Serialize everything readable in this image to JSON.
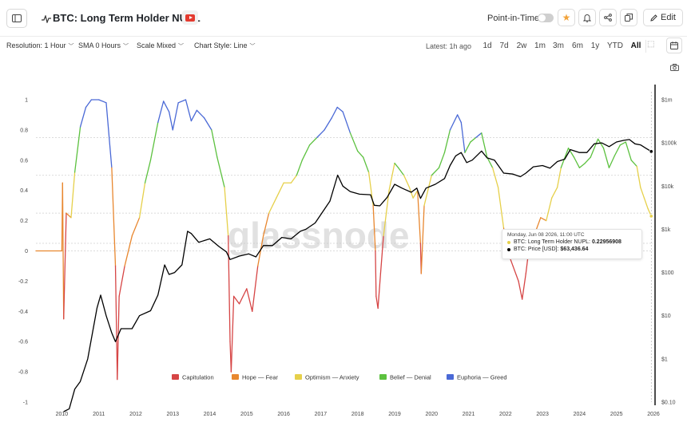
{
  "header": {
    "title": "BTC: Long Term Holder NUPL",
    "point_in_time_label": "Point-in-Time",
    "point_in_time_enabled": false,
    "edit_label": "Edit",
    "icons": [
      "sidebar-toggle-icon",
      "metric-activity-icon",
      "youtube-icon",
      "star-icon",
      "bell-icon",
      "share-icon",
      "copy-icon",
      "pencil-icon"
    ]
  },
  "controls": {
    "resolution": "Resolution: 1 Hour",
    "sma": "SMA 0 Hours",
    "scale": "Scale Mixed",
    "chart_style": "Chart Style: Line",
    "latest": "Latest: 1h ago",
    "ranges": [
      "1d",
      "7d",
      "2w",
      "1m",
      "3m",
      "6m",
      "1y",
      "YTD",
      "All"
    ],
    "active_range": "All"
  },
  "tooltip": {
    "date": "Monday, Jun 08 2026, 11:00 UTC",
    "nupl_label": "BTC: Long Term Holder NUPL:",
    "nupl_value": "0.22956908",
    "price_label": "BTC: Price [USD]:",
    "price_value": "$63,436.64"
  },
  "chart_data": {
    "type": "line",
    "watermark": "glassnode",
    "x_ticks": [
      "2010",
      "2011",
      "2012",
      "2013",
      "2014",
      "2015",
      "2016",
      "2017",
      "2018",
      "2019",
      "2020",
      "2021",
      "2022",
      "2023",
      "2024",
      "2025",
      "2026"
    ],
    "xlim": [
      2009.8,
      2026.5
    ],
    "left_axis": {
      "ticks": [
        "1",
        "0.8",
        "0.6",
        "0.4",
        "0.2",
        "0",
        "-0.2",
        "-0.4",
        "-0.6",
        "-0.8",
        "-1"
      ],
      "ylim": [
        -1,
        1
      ]
    },
    "right_axis": {
      "scale": "log",
      "ticks": [
        "$1m",
        "$100k",
        "$10k",
        "$1k",
        "$100",
        "$10",
        "$1",
        "$0.10"
      ],
      "ylim": [
        0.1,
        1000000
      ]
    },
    "zone_lines": [
      0.75,
      0.5,
      0.25,
      0.05,
      0
    ],
    "legend_position": "bottom",
    "legend": [
      {
        "name": "Capitulation",
        "color": "#d64545"
      },
      {
        "name": "Hope — Fear",
        "color": "#e8872f"
      },
      {
        "name": "Optimism — Anxiety",
        "color": "#e6d04a"
      },
      {
        "name": "Belief — Denial",
        "color": "#5cc13f"
      },
      {
        "name": "Euphoria — Greed",
        "color": "#4a69d6"
      }
    ],
    "series": [
      {
        "name": "BTC: Long Term Holder NUPL",
        "axis": "left",
        "points": [
          [
            2009.8,
            0.0
          ],
          [
            2010.5,
            0.0
          ],
          [
            2010.52,
            0.45
          ],
          [
            2010.55,
            -0.45
          ],
          [
            2010.62,
            0.25
          ],
          [
            2010.75,
            0.22
          ],
          [
            2010.85,
            0.52
          ],
          [
            2011.0,
            0.82
          ],
          [
            2011.15,
            0.95
          ],
          [
            2011.3,
            1.0
          ],
          [
            2011.5,
            1.0
          ],
          [
            2011.7,
            0.98
          ],
          [
            2011.85,
            0.55
          ],
          [
            2011.95,
            -0.1
          ],
          [
            2012.0,
            -0.85
          ],
          [
            2012.05,
            -0.3
          ],
          [
            2012.2,
            -0.1
          ],
          [
            2012.4,
            0.1
          ],
          [
            2012.6,
            0.22
          ],
          [
            2012.75,
            0.45
          ],
          [
            2012.9,
            0.6
          ],
          [
            2013.1,
            0.85
          ],
          [
            2013.25,
            0.99
          ],
          [
            2013.4,
            0.92
          ],
          [
            2013.5,
            0.8
          ],
          [
            2013.65,
            0.98
          ],
          [
            2013.85,
            1.0
          ],
          [
            2014.0,
            0.86
          ],
          [
            2014.15,
            0.93
          ],
          [
            2014.35,
            0.88
          ],
          [
            2014.55,
            0.8
          ],
          [
            2014.7,
            0.62
          ],
          [
            2014.9,
            0.42
          ],
          [
            2015.0,
            0.1
          ],
          [
            2015.05,
            -0.6
          ],
          [
            2015.08,
            -0.8
          ],
          [
            2015.15,
            -0.3
          ],
          [
            2015.3,
            -0.35
          ],
          [
            2015.5,
            -0.25
          ],
          [
            2015.65,
            -0.4
          ],
          [
            2015.8,
            -0.1
          ],
          [
            2015.95,
            0.1
          ],
          [
            2016.1,
            0.25
          ],
          [
            2016.3,
            0.35
          ],
          [
            2016.5,
            0.45
          ],
          [
            2016.7,
            0.45
          ],
          [
            2016.85,
            0.5
          ],
          [
            2017.0,
            0.6
          ],
          [
            2017.2,
            0.7
          ],
          [
            2017.4,
            0.75
          ],
          [
            2017.6,
            0.8
          ],
          [
            2017.8,
            0.88
          ],
          [
            2017.95,
            0.95
          ],
          [
            2018.1,
            0.92
          ],
          [
            2018.3,
            0.78
          ],
          [
            2018.5,
            0.66
          ],
          [
            2018.65,
            0.62
          ],
          [
            2018.8,
            0.52
          ],
          [
            2018.92,
            0.3
          ],
          [
            2018.98,
            0.0
          ],
          [
            2019.0,
            -0.3
          ],
          [
            2019.05,
            -0.38
          ],
          [
            2019.12,
            -0.15
          ],
          [
            2019.2,
            0.1
          ],
          [
            2019.35,
            0.4
          ],
          [
            2019.5,
            0.58
          ],
          [
            2019.6,
            0.55
          ],
          [
            2019.75,
            0.5
          ],
          [
            2019.9,
            0.42
          ],
          [
            2020.0,
            0.35
          ],
          [
            2020.12,
            0.4
          ],
          [
            2020.2,
            0.05
          ],
          [
            2020.22,
            -0.15
          ],
          [
            2020.3,
            0.3
          ],
          [
            2020.5,
            0.5
          ],
          [
            2020.7,
            0.55
          ],
          [
            2020.85,
            0.65
          ],
          [
            2021.0,
            0.8
          ],
          [
            2021.2,
            0.9
          ],
          [
            2021.3,
            0.85
          ],
          [
            2021.4,
            0.65
          ],
          [
            2021.55,
            0.72
          ],
          [
            2021.7,
            0.75
          ],
          [
            2021.85,
            0.78
          ],
          [
            2022.0,
            0.62
          ],
          [
            2022.15,
            0.55
          ],
          [
            2022.3,
            0.42
          ],
          [
            2022.45,
            0.15
          ],
          [
            2022.55,
            0.0
          ],
          [
            2022.7,
            -0.1
          ],
          [
            2022.85,
            -0.2
          ],
          [
            2022.95,
            -0.32
          ],
          [
            2023.05,
            -0.15
          ],
          [
            2023.15,
            0.05
          ],
          [
            2023.3,
            0.12
          ],
          [
            2023.45,
            0.22
          ],
          [
            2023.6,
            0.2
          ],
          [
            2023.75,
            0.35
          ],
          [
            2023.9,
            0.42
          ],
          [
            2024.0,
            0.55
          ],
          [
            2024.2,
            0.68
          ],
          [
            2024.35,
            0.62
          ],
          [
            2024.5,
            0.55
          ],
          [
            2024.65,
            0.58
          ],
          [
            2024.8,
            0.62
          ],
          [
            2025.0,
            0.74
          ],
          [
            2025.15,
            0.68
          ],
          [
            2025.3,
            0.55
          ],
          [
            2025.45,
            0.63
          ],
          [
            2025.6,
            0.7
          ],
          [
            2025.75,
            0.72
          ],
          [
            2025.9,
            0.6
          ],
          [
            2026.05,
            0.56
          ],
          [
            2026.15,
            0.42
          ],
          [
            2026.25,
            0.35
          ],
          [
            2026.35,
            0.28
          ],
          [
            2026.44,
            0.23
          ]
        ]
      },
      {
        "name": "BTC: Price [USD]",
        "axis": "right",
        "color": "#000000",
        "points": [
          [
            2010.55,
            0.06
          ],
          [
            2010.7,
            0.07
          ],
          [
            2010.85,
            0.2
          ],
          [
            2011.0,
            0.3
          ],
          [
            2011.2,
            1.0
          ],
          [
            2011.45,
            15
          ],
          [
            2011.55,
            30
          ],
          [
            2011.7,
            10
          ],
          [
            2011.85,
            4
          ],
          [
            2011.95,
            2.5
          ],
          [
            2012.1,
            5
          ],
          [
            2012.4,
            5
          ],
          [
            2012.6,
            10
          ],
          [
            2012.9,
            13
          ],
          [
            2013.1,
            30
          ],
          [
            2013.28,
            150
          ],
          [
            2013.4,
            90
          ],
          [
            2013.55,
            100
          ],
          [
            2013.75,
            150
          ],
          [
            2013.9,
            900
          ],
          [
            2014.0,
            800
          ],
          [
            2014.2,
            500
          ],
          [
            2014.5,
            600
          ],
          [
            2014.75,
            400
          ],
          [
            2014.95,
            300
          ],
          [
            2015.05,
            200
          ],
          [
            2015.3,
            240
          ],
          [
            2015.55,
            270
          ],
          [
            2015.75,
            230
          ],
          [
            2015.95,
            420
          ],
          [
            2016.2,
            420
          ],
          [
            2016.45,
            650
          ],
          [
            2016.7,
            600
          ],
          [
            2016.95,
            900
          ],
          [
            2017.1,
            1000
          ],
          [
            2017.35,
            1400
          ],
          [
            2017.55,
            2500
          ],
          [
            2017.75,
            4500
          ],
          [
            2017.96,
            18000
          ],
          [
            2018.1,
            10000
          ],
          [
            2018.3,
            7500
          ],
          [
            2018.55,
            6500
          ],
          [
            2018.85,
            6300
          ],
          [
            2018.95,
            3600
          ],
          [
            2019.1,
            3500
          ],
          [
            2019.3,
            5500
          ],
          [
            2019.5,
            11000
          ],
          [
            2019.7,
            9000
          ],
          [
            2019.95,
            7200
          ],
          [
            2020.1,
            9000
          ],
          [
            2020.2,
            5200
          ],
          [
            2020.35,
            9000
          ],
          [
            2020.6,
            11000
          ],
          [
            2020.85,
            15000
          ],
          [
            2021.0,
            30000
          ],
          [
            2021.15,
            50000
          ],
          [
            2021.3,
            60000
          ],
          [
            2021.45,
            35000
          ],
          [
            2021.6,
            40000
          ],
          [
            2021.85,
            65000
          ],
          [
            2022.0,
            45000
          ],
          [
            2022.2,
            40000
          ],
          [
            2022.45,
            20000
          ],
          [
            2022.7,
            19000
          ],
          [
            2022.9,
            16500
          ],
          [
            2023.05,
            20000
          ],
          [
            2023.25,
            28000
          ],
          [
            2023.5,
            30000
          ],
          [
            2023.7,
            26000
          ],
          [
            2023.9,
            37000
          ],
          [
            2024.1,
            42000
          ],
          [
            2024.25,
            70000
          ],
          [
            2024.5,
            60000
          ],
          [
            2024.7,
            60000
          ],
          [
            2024.9,
            95000
          ],
          [
            2025.1,
            100000
          ],
          [
            2025.3,
            82000
          ],
          [
            2025.5,
            105000
          ],
          [
            2025.7,
            115000
          ],
          [
            2025.85,
            120000
          ],
          [
            2026.0,
            95000
          ],
          [
            2026.15,
            90000
          ],
          [
            2026.3,
            75000
          ],
          [
            2026.44,
            63436.64
          ]
        ]
      }
    ]
  }
}
